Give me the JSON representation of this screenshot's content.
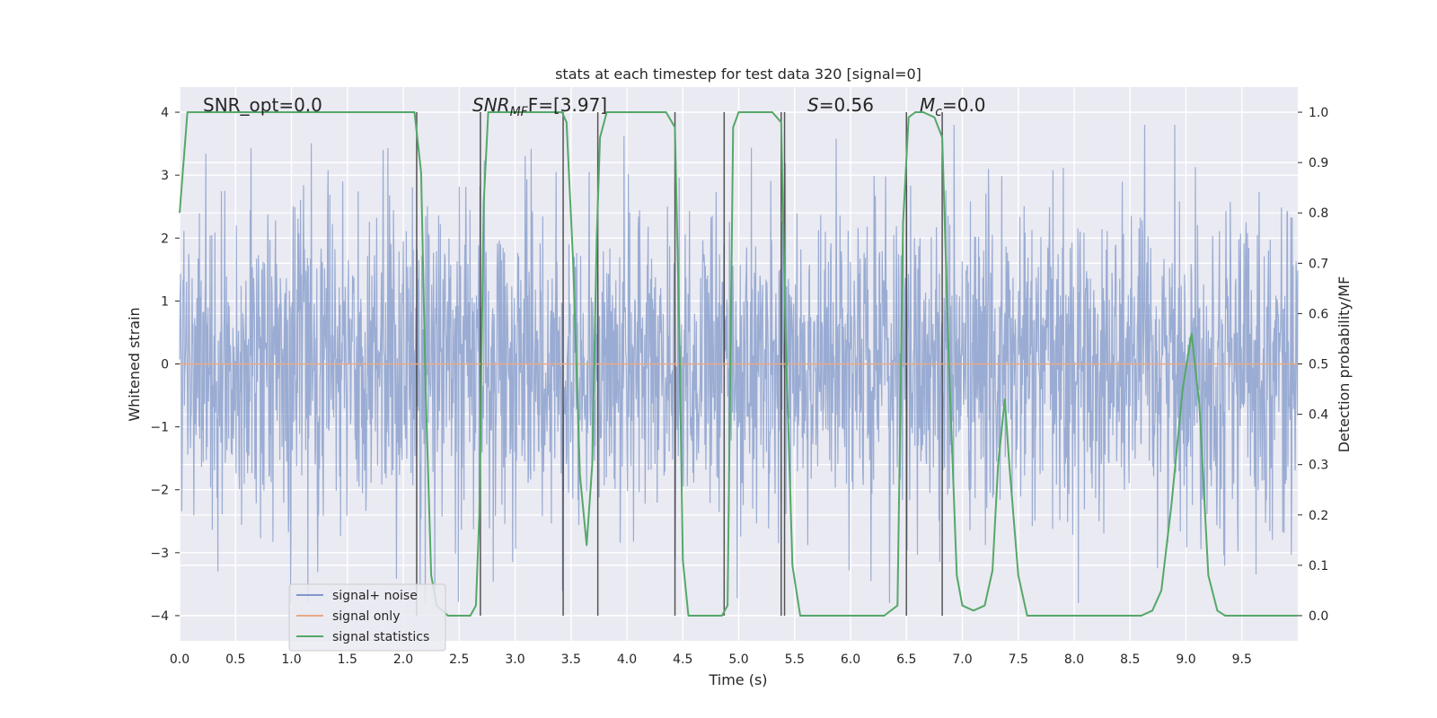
{
  "chart_data": {
    "type": "line",
    "title": "stats at each timestep for test data 320 [signal=0]",
    "xlabel": "Time (s)",
    "ylabel": "Whitened strain",
    "ylabel_right": "Detection probability/MF",
    "xlim": [
      0,
      10
    ],
    "ylim": [
      -4.4,
      4.4
    ],
    "ylim_right": [
      -0.05,
      1.05
    ],
    "x_ticks": [
      "0.0",
      "0.5",
      "1.0",
      "1.5",
      "2.0",
      "2.5",
      "3.0",
      "3.5",
      "4.0",
      "4.5",
      "5.0",
      "5.5",
      "6.0",
      "6.5",
      "7.0",
      "7.5",
      "8.0",
      "8.5",
      "9.0",
      "9.5"
    ],
    "y_ticks": [
      4,
      3,
      2,
      1,
      0,
      -1,
      -2,
      -3,
      -4
    ],
    "y_tick_labels": [
      "4",
      "3",
      "2",
      "1",
      "0",
      "−1",
      "−2",
      "−3",
      "−4"
    ],
    "y_right_ticks": [
      1.0,
      0.9,
      0.8,
      0.7,
      0.6,
      0.5,
      0.4,
      0.3,
      0.2,
      0.1,
      0.0
    ],
    "y_right_tick_labels": [
      "1.0",
      "0.9",
      "0.8",
      "0.7",
      "0.6",
      "0.5",
      "0.4",
      "0.3",
      "0.2",
      "0.1",
      "0.0"
    ],
    "grid": true,
    "legend_position": "lower-left",
    "annotations": {
      "snr_opt": "SNR_opt=0.0",
      "snr_mf_main": "SNR",
      "snr_mf_sub": "MF",
      "snr_mf_rest": "F=[3.97]",
      "s_main": "S",
      "s_rest": "=0.56",
      "mc_main": "M",
      "mc_sub": "c",
      "mc_rest": "=0.0"
    },
    "series": [
      {
        "name": "signal+ noise",
        "color": "#7f97c8",
        "kind": "noise",
        "amplitude_typical": 2.5,
        "amplitude_peak": 3.8
      },
      {
        "name": "signal only",
        "color": "#e8a986",
        "kind": "constant",
        "y": 0
      },
      {
        "name": "signal statistics",
        "color": "#55a868",
        "axis": "right",
        "x": [
          0.0,
          0.07,
          0.15,
          0.4,
          1.0,
          1.5,
          2.0,
          2.1,
          2.16,
          2.2,
          2.25,
          2.3,
          2.4,
          2.6,
          2.65,
          2.68,
          2.72,
          2.76,
          2.85,
          3.0,
          3.3,
          3.42,
          3.46,
          3.52,
          3.58,
          3.64,
          3.69,
          3.73,
          3.76,
          3.82,
          3.9,
          4.1,
          4.35,
          4.43,
          4.47,
          4.5,
          4.55,
          4.7,
          4.85,
          4.9,
          4.95,
          5.0,
          5.1,
          5.3,
          5.38,
          5.42,
          5.48,
          5.55,
          5.7,
          6.0,
          6.3,
          6.42,
          6.47,
          6.52,
          6.58,
          6.65,
          6.75,
          6.82,
          6.88,
          6.95,
          7.0,
          7.1,
          7.2,
          7.27,
          7.32,
          7.38,
          7.42,
          7.5,
          7.58,
          7.7,
          7.9,
          8.0,
          8.3,
          8.6,
          8.7,
          8.78,
          8.87,
          8.97,
          9.05,
          9.12,
          9.2,
          9.28,
          9.35,
          9.5,
          10.0
        ],
        "y": [
          0.8,
          1.0,
          1.0,
          1.0,
          1.0,
          1.0,
          1.0,
          1.0,
          0.88,
          0.45,
          0.08,
          0.02,
          0.0,
          0.0,
          0.02,
          0.2,
          0.82,
          1.0,
          1.0,
          1.0,
          1.0,
          1.0,
          0.98,
          0.7,
          0.28,
          0.14,
          0.3,
          0.75,
          0.95,
          1.0,
          1.0,
          1.0,
          1.0,
          0.97,
          0.55,
          0.11,
          0.0,
          0.0,
          0.0,
          0.02,
          0.97,
          1.0,
          1.0,
          1.0,
          0.98,
          0.55,
          0.1,
          0.0,
          0.0,
          0.0,
          0.0,
          0.02,
          0.78,
          0.99,
          1.0,
          1.0,
          0.99,
          0.95,
          0.5,
          0.08,
          0.02,
          0.01,
          0.02,
          0.09,
          0.3,
          0.43,
          0.3,
          0.08,
          0.0,
          0.0,
          0.0,
          0.0,
          0.0,
          0.0,
          0.01,
          0.05,
          0.22,
          0.45,
          0.56,
          0.42,
          0.08,
          0.01,
          0.0,
          0.0,
          0.0
        ]
      }
    ],
    "vlines": [
      2.12,
      2.69,
      3.43,
      3.74,
      4.43,
      4.87,
      5.38,
      5.41,
      6.5,
      6.82
    ]
  },
  "legend": {
    "items": [
      "signal+ noise",
      "signal only",
      "signal statistics"
    ]
  }
}
